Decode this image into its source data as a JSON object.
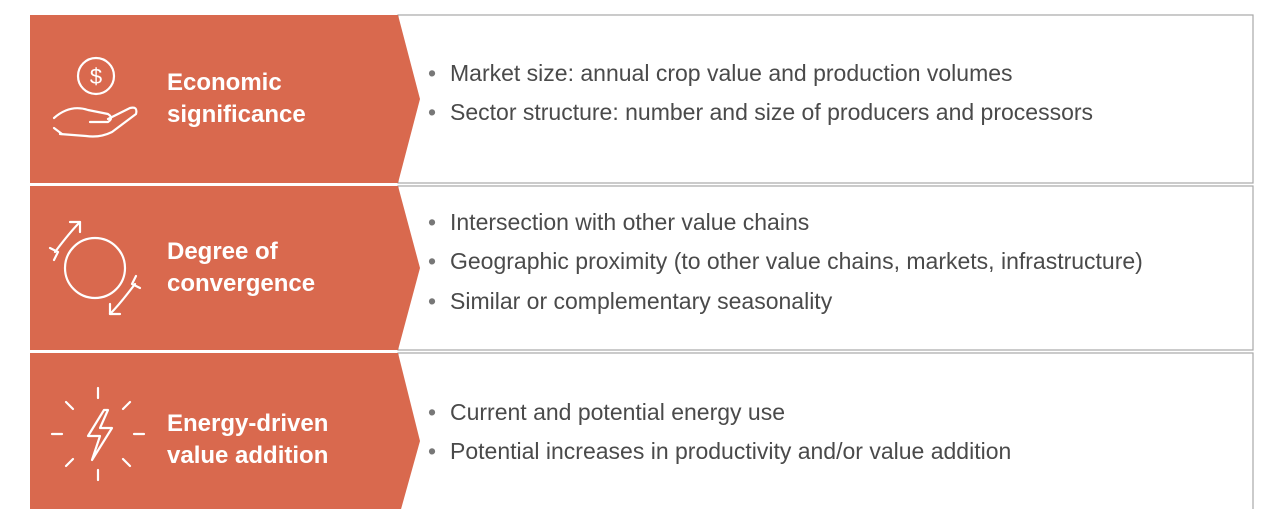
{
  "rows": [
    {
      "title_lines": [
        "Economic",
        "significance"
      ],
      "bullets": [
        "Market size: annual crop value and production volumes",
        "Sector structure: number and size of producers and processors"
      ]
    },
    {
      "title_lines": [
        "Degree of",
        "convergence"
      ],
      "bullets": [
        "Intersection with other value chains",
        "Geographic proximity (to other value chains, markets, infrastructure)",
        "Similar or complementary seasonality"
      ]
    },
    {
      "title_lines": [
        "Energy-driven",
        "value addition"
      ],
      "bullets": [
        "Current and potential energy use",
        "Potential increases in productivity and/or value addition"
      ]
    }
  ]
}
